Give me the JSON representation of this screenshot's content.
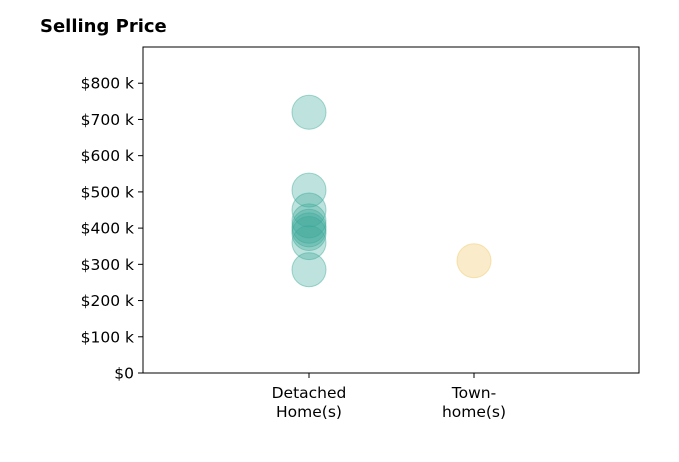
{
  "chart_data": {
    "type": "scatter",
    "title": "Selling Price",
    "categories": [
      "Detached\nHome(s)",
      "Town-\nhome(s)"
    ],
    "ylim": [
      0,
      900
    ],
    "y_ticks": [
      0,
      100,
      200,
      300,
      400,
      500,
      600,
      700,
      800
    ],
    "y_tick_labels": [
      "$0",
      "$100 k",
      "$200 k",
      "$300 k",
      "$400 k",
      "$500 k",
      "$600 k",
      "$700 k",
      "$800 k"
    ],
    "grid": false,
    "series": [
      {
        "category": "Detached\nHome(s)",
        "color": "#3aa899",
        "values": [
          720,
          505,
          450,
          420,
          405,
          395,
          385,
          360,
          285
        ]
      },
      {
        "category": "Town-\nhome(s)",
        "color": "#efc65f",
        "values": [
          310
        ]
      }
    ]
  }
}
